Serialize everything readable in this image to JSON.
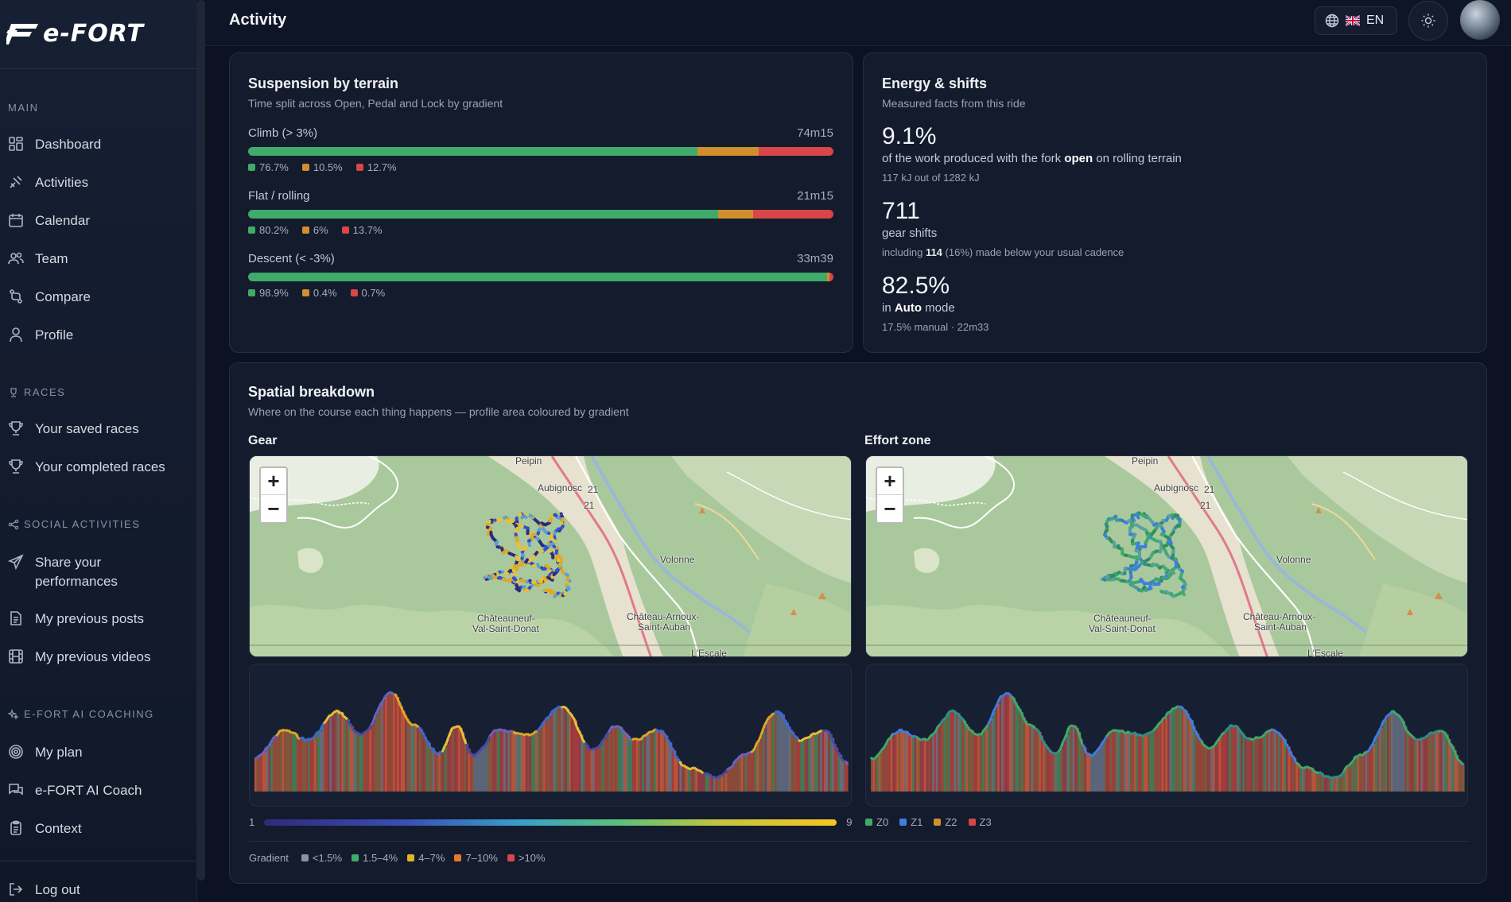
{
  "app": {
    "logo_text": "e-FORT",
    "page_title": "Activity"
  },
  "sidebar": {
    "sections": {
      "main": "MAIN",
      "races": "RACES",
      "social": "SOCIAL ACTIVITIES",
      "coaching": "E-FORT AI COACHING"
    },
    "items": [
      {
        "label": "Dashboard",
        "icon": "dashboard-icon"
      },
      {
        "label": "Activities",
        "icon": "activities-icon"
      },
      {
        "label": "Calendar",
        "icon": "calendar-icon"
      },
      {
        "label": "Team",
        "icon": "team-icon"
      },
      {
        "label": "Compare",
        "icon": "compare-icon"
      },
      {
        "label": "Profile",
        "icon": "user-icon"
      },
      {
        "label": "Your saved races",
        "icon": "trophy-icon"
      },
      {
        "label": "Your completed races",
        "icon": "trophy-icon"
      },
      {
        "label": "Share your performances",
        "icon": "send-icon"
      },
      {
        "label": "My previous posts",
        "icon": "document-icon"
      },
      {
        "label": "My previous videos",
        "icon": "film-icon"
      },
      {
        "label": "My plan",
        "icon": "target-icon"
      },
      {
        "label": "e-FORT AI Coach",
        "icon": "chat-icon"
      },
      {
        "label": "Context",
        "icon": "clipboard-icon"
      },
      {
        "label": "Log out",
        "icon": "logout-icon"
      }
    ]
  },
  "header": {
    "language": "EN"
  },
  "suspension": {
    "title": "Suspension by terrain",
    "subtitle": "Time split across Open, Pedal and Lock by gradient",
    "colors": {
      "open": "#3faa6a",
      "pedal": "#d08f2c",
      "lock": "#d8464a"
    },
    "rows": [
      {
        "label": "Climb (> 3%)",
        "time": "74m15",
        "values": [
          76.7,
          10.5,
          12.7
        ],
        "labels": [
          "76.7%",
          "10.5%",
          "12.7%"
        ]
      },
      {
        "label": "Flat / rolling",
        "time": "21m15",
        "values": [
          80.2,
          6,
          13.7
        ],
        "labels": [
          "80.2%",
          "6%",
          "13.7%"
        ]
      },
      {
        "label": "Descent (< -3%)",
        "time": "33m39",
        "values": [
          98.9,
          0.4,
          0.7
        ],
        "labels": [
          "98.9%",
          "0.4%",
          "0.7%"
        ]
      }
    ]
  },
  "energy": {
    "title": "Energy & shifts",
    "subtitle": "Measured facts from this ride",
    "stat1": {
      "big": "9.1%",
      "pre": "of the work produced with the fork ",
      "bold": "open",
      "post": " on rolling terrain",
      "small": "117 kJ out of 1282 kJ"
    },
    "stat2": {
      "big": "711",
      "line": "gear shifts",
      "small_pre": "including ",
      "small_bold": "114",
      "small_post": " (16%) made below your usual cadence"
    },
    "stat3": {
      "big": "82.5%",
      "pre": "in ",
      "bold": "Auto",
      "post": " mode",
      "small": "17.5% manual · 22m33"
    }
  },
  "spatial": {
    "title": "Spatial breakdown",
    "subtitle": "Where on the course each thing happens — profile area coloured by gradient",
    "gear_label": "Gear",
    "effort_label": "Effort zone",
    "zoom_in": "+",
    "zoom_out": "−",
    "towns": {
      "peipin": "Peipin",
      "aubignosc": "Aubignosc",
      "volonne": "Volonne",
      "chateauneuf_1": "Châteauneuf-",
      "chateauneuf_2": "Val-Saint-Donat",
      "chateau_arnoux_1": "Château-Arnoux-",
      "chateau_arnoux_2": "Saint-Auban",
      "lescale": "L'Escale",
      "road": "21"
    },
    "gear_scale_min": "1",
    "gear_scale_max": "9",
    "zones": [
      {
        "label": "Z0",
        "color": "#3faa6a"
      },
      {
        "label": "Z1",
        "color": "#3d7fe0"
      },
      {
        "label": "Z2",
        "color": "#d08f2c"
      },
      {
        "label": "Z3",
        "color": "#d8464a"
      }
    ],
    "gradient_title": "Gradient",
    "gradient": [
      {
        "label": "<1.5%",
        "color": "#8a93a6"
      },
      {
        "label": "1.5–4%",
        "color": "#3faa6a"
      },
      {
        "label": "4–7%",
        "color": "#e0b52a"
      },
      {
        "label": "7–10%",
        "color": "#e5782a"
      },
      {
        "label": ">10%",
        "color": "#d8464a"
      }
    ]
  }
}
